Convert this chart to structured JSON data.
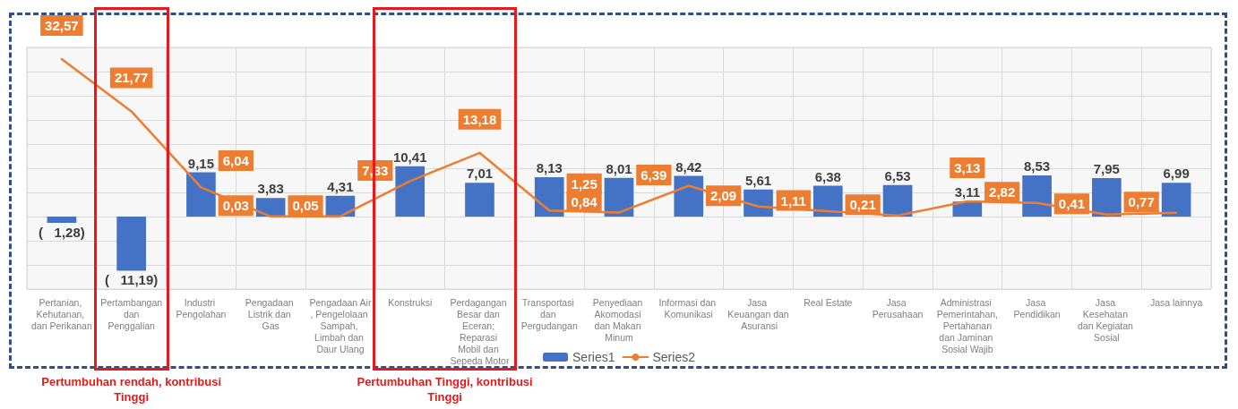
{
  "chart_data": {
    "type": "bar",
    "categories": [
      "Pertanian, Kehutanan, dan Perikanan",
      "Pertambangan dan Penggalian",
      "Industri Pengolahan",
      "Pengadaan Listrik dan Gas",
      "Pengadaan Air, Pengelolaan Sampah, Limbah dan Daur Ulang",
      "Konstruksi",
      "Perdagangan Besar dan Eceran; Reparasi Mobil dan Sepeda Motor",
      "Transportasi dan Pergudangan",
      "Penyediaan Akomodasi dan Makan Minum",
      "Informasi dan Komunikasi",
      "Jasa Keuangan dan Asuransi",
      "Real Estate",
      "Jasa Perusahaan",
      "Administrasi Pemerintahan, Pertahanan dan Jaminan Sosial Wajib",
      "Jasa Pendidikan",
      "Jasa Kesehatan dan Kegiatan Sosial",
      "Jasa lainnya"
    ],
    "series": [
      {
        "name": "Series1",
        "type": "bar",
        "color": "#4472c4",
        "values": [
          -1.28,
          -11.19,
          9.15,
          3.83,
          4.31,
          10.41,
          7.01,
          8.13,
          8.01,
          8.42,
          5.61,
          6.38,
          6.53,
          3.11,
          8.53,
          7.95,
          6.99
        ],
        "value_labels": [
          "(   1,28)",
          "(   11,19)",
          "9,15",
          "3,83",
          "4,31",
          "10,41",
          "7,01",
          "8,13",
          "8,01",
          "8,42",
          "5,61",
          "6,38",
          "6,53",
          "3,11",
          "8,53",
          "7,95",
          "6,99"
        ]
      },
      {
        "name": "Series2",
        "type": "line",
        "color": "#ed7d31",
        "values": [
          32.57,
          21.77,
          6.04,
          0.03,
          0.05,
          7.33,
          13.18,
          1.25,
          0.84,
          6.39,
          2.09,
          1.11,
          0.21,
          3.13,
          2.82,
          0.41,
          0.77
        ],
        "value_labels": [
          "32,57",
          "21,77",
          "6,04",
          "0,03",
          "0,05",
          "7,33",
          "13,18",
          "1,25",
          "0,84",
          "6,39",
          "2,09",
          "1,11",
          "0,21",
          "3,13",
          "2,82",
          "0,41",
          "0,77"
        ]
      }
    ],
    "ylim": [
      -15,
      35
    ],
    "yticks": [
      {
        "value": -15,
        "label": null
      },
      {
        "value": -10,
        "label": null
      },
      {
        "value": -5,
        "label": null
      },
      {
        "value": 0,
        "label": null
      },
      {
        "value": 5,
        "label": null
      },
      {
        "value": 10,
        "label": null
      },
      {
        "value": 15,
        "label": null
      },
      {
        "value": 20,
        "label": null
      },
      {
        "value": 25,
        "label": null
      },
      {
        "value": 30,
        "label": null
      },
      {
        "value": 35,
        "label": null
      }
    ],
    "tick_labels": "x",
    "grid": true,
    "legend": "bottom",
    "marker": "none",
    "line_style": "solid",
    "annotations": [
      "Pertumbuhan rendah, kontribusi Tinggi",
      "Pertumbuhan Tinggi, kontribusi Tinggi"
    ]
  }
}
